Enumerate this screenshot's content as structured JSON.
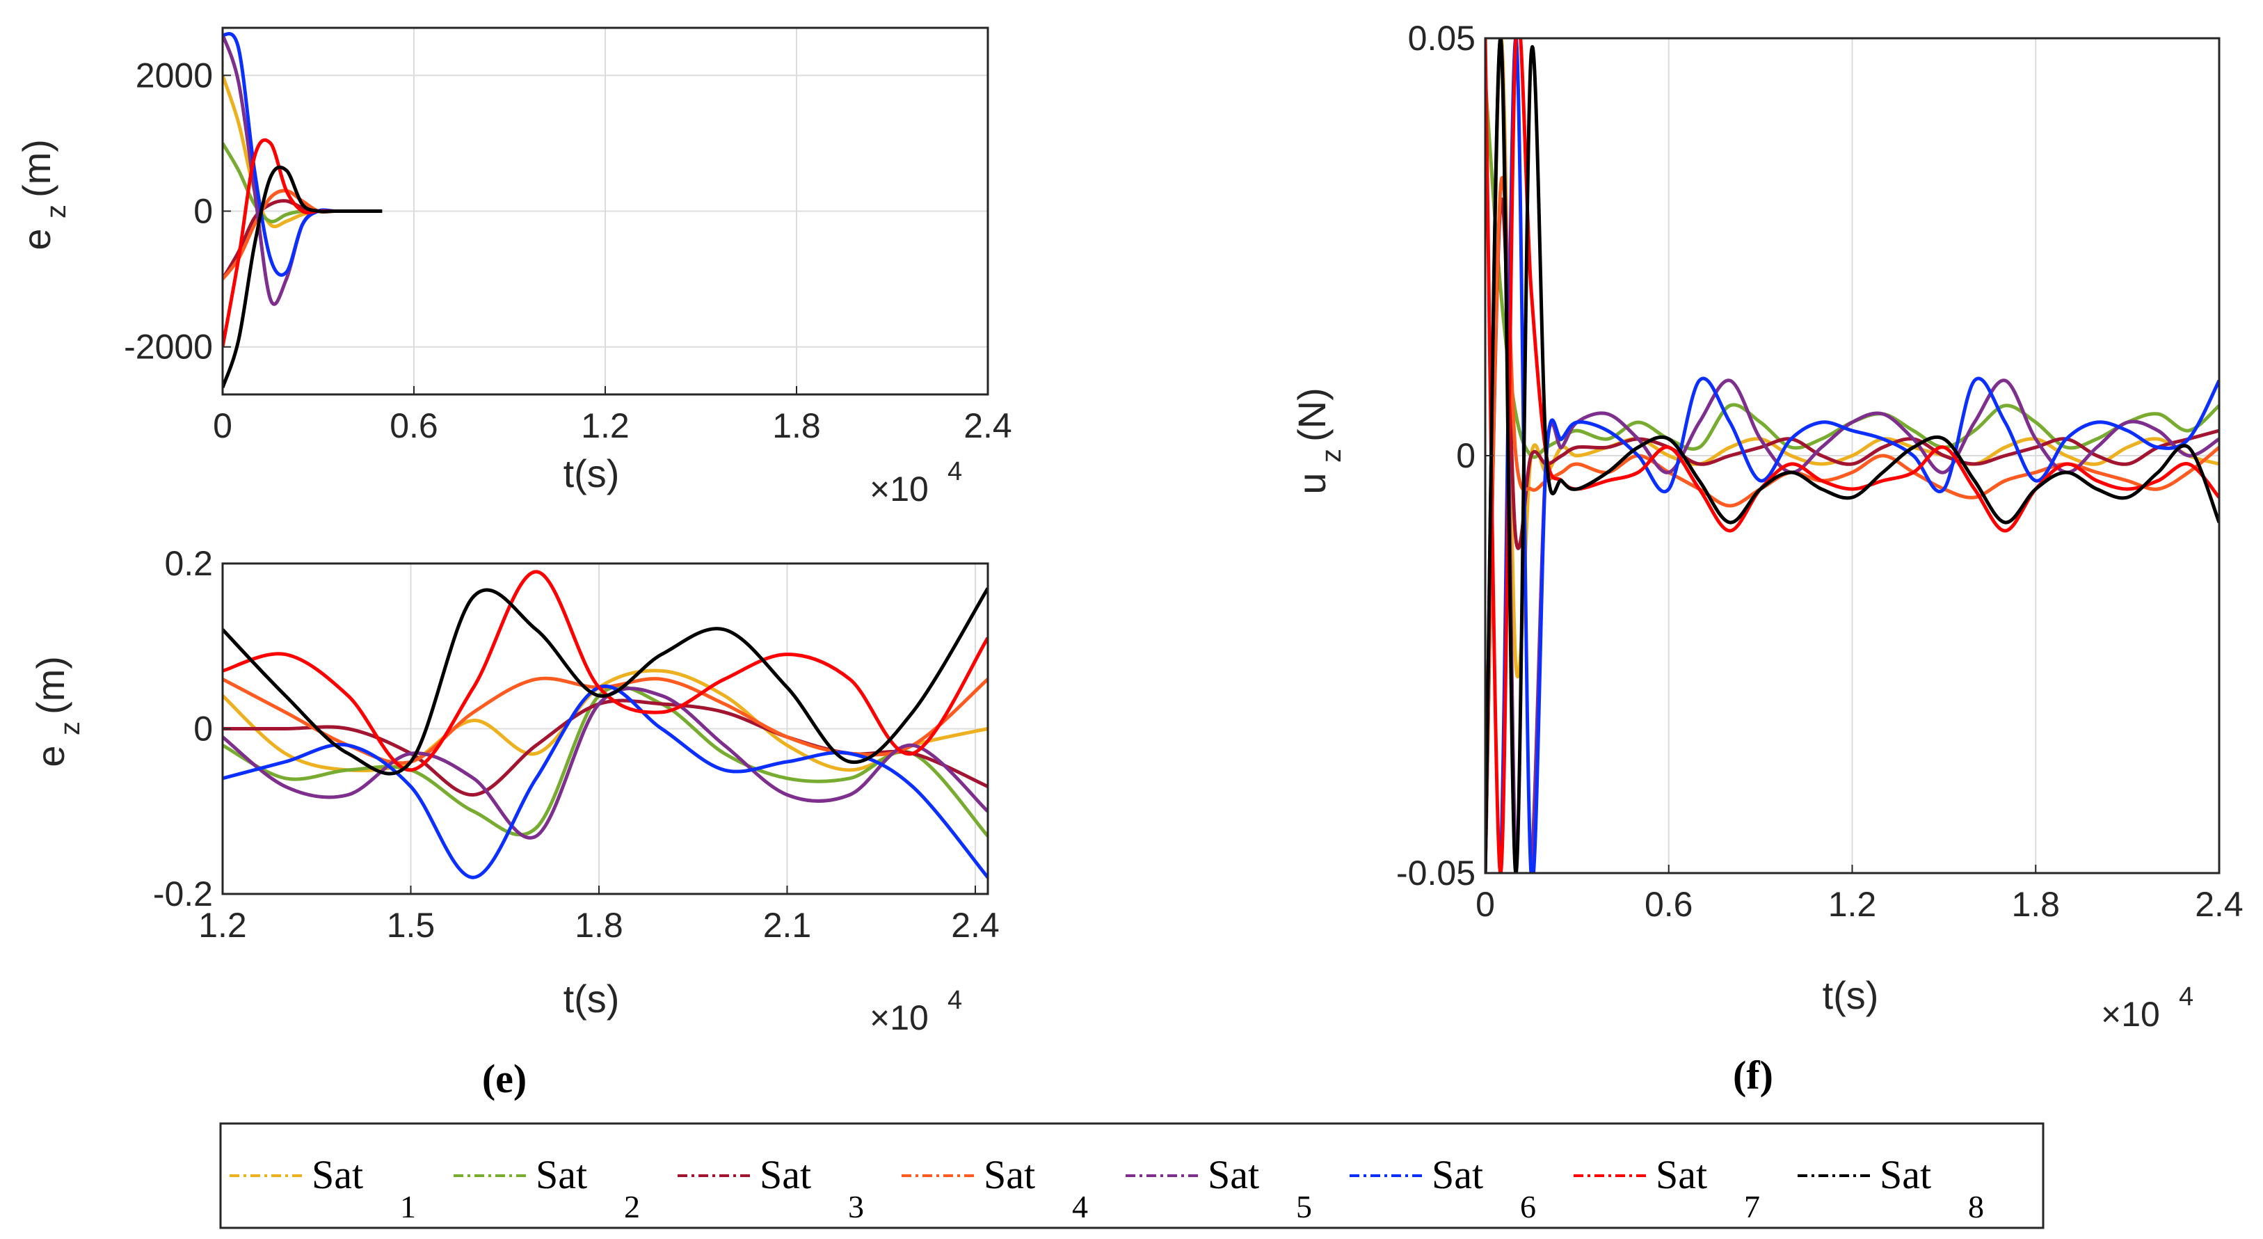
{
  "series_styles": [
    {
      "name": "Sat 1",
      "color": "#EDB120"
    },
    {
      "name": "Sat 2",
      "color": "#77AC30"
    },
    {
      "name": "Sat 3",
      "color": "#A2142F"
    },
    {
      "name": "Sat 4",
      "color": "#FF5A1F"
    },
    {
      "name": "Sat 5",
      "color": "#7E2F8E"
    },
    {
      "name": "Sat 6",
      "color": "#0B2FFF"
    },
    {
      "name": "Sat 7",
      "color": "#FF0000"
    },
    {
      "name": "Sat 8",
      "color": "#000000"
    }
  ],
  "legend": {
    "items": [
      {
        "base": "Sat",
        "sub": "1"
      },
      {
        "base": "Sat",
        "sub": "2"
      },
      {
        "base": "Sat",
        "sub": "3"
      },
      {
        "base": "Sat",
        "sub": "4"
      },
      {
        "base": "Sat",
        "sub": "5"
      },
      {
        "base": "Sat",
        "sub": "6"
      },
      {
        "base": "Sat",
        "sub": "7"
      },
      {
        "base": "Sat",
        "sub": "8"
      }
    ]
  },
  "panels": {
    "e": "(e)",
    "f": "(f)"
  },
  "chart_data": [
    {
      "id": "top",
      "type": "line",
      "title": "",
      "ylabel_main": "e",
      "ylabel_sub": "z",
      "ylabel_unit": "(m)",
      "xlabel": "t(s)",
      "x_exponent_base": "×10",
      "x_exponent_power": "4",
      "xlim": [
        0,
        2.4
      ],
      "ylim": [
        -2700,
        2700
      ],
      "xticks": [
        0,
        0.6,
        1.2,
        1.8,
        2.4
      ],
      "xtick_labels": [
        "0",
        "0.6",
        "1.2",
        "1.8",
        "2.4"
      ],
      "yticks": [
        -2000,
        0,
        2000
      ],
      "ytick_labels": [
        "-2000",
        "0",
        "2000"
      ],
      "grid": true,
      "sample_x": [
        0,
        0.05,
        0.1,
        0.15,
        0.2,
        0.25,
        0.3,
        0.35,
        0.4,
        0.45,
        0.5
      ],
      "series": [
        {
          "name": "Sat 1",
          "values": [
            2000,
            1300,
            300,
            -200,
            -150,
            -50,
            0,
            0,
            0,
            0,
            0
          ]
        },
        {
          "name": "Sat 2",
          "values": [
            1000,
            600,
            100,
            -150,
            -50,
            0,
            0,
            0,
            0,
            0,
            0
          ]
        },
        {
          "name": "Sat 3",
          "values": [
            -1000,
            -600,
            -100,
            100,
            150,
            50,
            0,
            0,
            0,
            0,
            0
          ]
        },
        {
          "name": "Sat 4",
          "values": [
            -1000,
            -700,
            -200,
            200,
            300,
            150,
            0,
            0,
            0,
            0,
            0
          ]
        },
        {
          "name": "Sat 5",
          "values": [
            2600,
            1900,
            300,
            -1300,
            -1000,
            -200,
            0,
            0,
            0,
            0,
            0
          ]
        },
        {
          "name": "Sat 6",
          "values": [
            2600,
            2400,
            600,
            -700,
            -900,
            -200,
            0,
            0,
            0,
            0,
            0
          ]
        },
        {
          "name": "Sat 7",
          "values": [
            -2000,
            -700,
            800,
            1000,
            300,
            0,
            0,
            0,
            0,
            0,
            0
          ]
        },
        {
          "name": "Sat 8",
          "values": [
            -2600,
            -1900,
            -500,
            500,
            600,
            100,
            0,
            0,
            0,
            0,
            0
          ]
        }
      ]
    },
    {
      "id": "bottom",
      "type": "line",
      "title": "",
      "ylabel_main": "e",
      "ylabel_sub": "z",
      "ylabel_unit": "(m)",
      "xlabel": "t(s)",
      "x_exponent_base": "×10",
      "x_exponent_power": "4",
      "xlim": [
        1.2,
        2.42
      ],
      "ylim": [
        -0.2,
        0.2
      ],
      "xticks": [
        1.2,
        1.5,
        1.8,
        2.1,
        2.4
      ],
      "xtick_labels": [
        "1.2",
        "1.5",
        "1.8",
        "2.1",
        "2.4"
      ],
      "yticks": [
        -0.2,
        0,
        0.2
      ],
      "ytick_labels": [
        "-0.2",
        "0",
        "0.2"
      ],
      "grid": true,
      "sample_x": [
        1.2,
        1.3,
        1.4,
        1.5,
        1.6,
        1.7,
        1.8,
        1.9,
        2.0,
        2.1,
        2.2,
        2.3,
        2.42
      ],
      "series": [
        {
          "name": "Sat 1",
          "values": [
            0.04,
            -0.03,
            -0.05,
            -0.04,
            0.01,
            -0.03,
            0.05,
            0.07,
            0.04,
            -0.02,
            -0.05,
            -0.02,
            0.0
          ]
        },
        {
          "name": "Sat 2",
          "values": [
            -0.02,
            -0.06,
            -0.05,
            -0.05,
            -0.1,
            -0.12,
            0.04,
            0.03,
            -0.03,
            -0.06,
            -0.06,
            -0.03,
            -0.13
          ]
        },
        {
          "name": "Sat 3",
          "values": [
            0.0,
            0.0,
            0.0,
            -0.03,
            -0.08,
            -0.02,
            0.03,
            0.03,
            0.02,
            -0.01,
            -0.03,
            -0.03,
            -0.07
          ]
        },
        {
          "name": "Sat 4",
          "values": [
            0.06,
            0.02,
            -0.02,
            -0.04,
            0.02,
            0.06,
            0.05,
            0.06,
            0.03,
            -0.01,
            -0.03,
            -0.02,
            0.06
          ]
        },
        {
          "name": "Sat 5",
          "values": [
            -0.01,
            -0.07,
            -0.08,
            -0.03,
            -0.06,
            -0.13,
            0.03,
            0.04,
            -0.02,
            -0.08,
            -0.08,
            -0.02,
            -0.1
          ]
        },
        {
          "name": "Sat 6",
          "values": [
            -0.06,
            -0.04,
            -0.02,
            -0.07,
            -0.18,
            -0.06,
            0.05,
            0.0,
            -0.05,
            -0.04,
            -0.03,
            -0.07,
            -0.18
          ]
        },
        {
          "name": "Sat 7",
          "values": [
            0.07,
            0.09,
            0.04,
            -0.05,
            0.05,
            0.19,
            0.05,
            0.02,
            0.06,
            0.09,
            0.06,
            -0.03,
            0.11
          ]
        },
        {
          "name": "Sat 8",
          "values": [
            0.12,
            0.04,
            -0.03,
            -0.04,
            0.16,
            0.12,
            0.04,
            0.09,
            0.12,
            0.05,
            -0.04,
            0.02,
            0.17
          ]
        }
      ]
    },
    {
      "id": "right",
      "type": "line",
      "title": "",
      "ylabel_main": "u",
      "ylabel_sub": "z",
      "ylabel_unit": "(N)",
      "xlabel": "t(s)",
      "x_exponent_base": "×10",
      "x_exponent_power": "4",
      "xlim": [
        0,
        2.4
      ],
      "ylim": [
        -0.05,
        0.05
      ],
      "xticks": [
        0,
        0.6,
        1.2,
        1.8,
        2.4
      ],
      "xtick_labels": [
        "0",
        "0.6",
        "1.2",
        "1.8",
        "2.4"
      ],
      "yticks": [
        -0.05,
        0,
        0.05
      ],
      "ytick_labels": [
        "-0.05",
        "0",
        "0.05"
      ],
      "grid": true,
      "sample_x": [
        0,
        0.05,
        0.1,
        0.15,
        0.2,
        0.25,
        0.3,
        0.4,
        0.5,
        0.6,
        0.7,
        0.8,
        0.9,
        1.0,
        1.1,
        1.2,
        1.3,
        1.4,
        1.5,
        1.6,
        1.7,
        1.8,
        1.9,
        2.0,
        2.1,
        2.2,
        2.3,
        2.4
      ],
      "series": [
        {
          "name": "Sat 1",
          "values": [
            -0.05,
            0.05,
            -0.025,
            0.0,
            -0.002,
            0.001,
            0.0,
            0.001,
            0.002,
            0.0,
            -0.001,
            0.001,
            0.002,
            0.0,
            -0.001,
            0.0,
            0.002,
            0.001,
            0.0,
            -0.001,
            0.001,
            0.002,
            0.0,
            -0.001,
            0.001,
            0.002,
            0.0,
            -0.001
          ]
        },
        {
          "name": "Sat 2",
          "values": [
            0.045,
            0.02,
            0.005,
            0.0,
            0.001,
            0.002,
            0.003,
            0.002,
            0.004,
            0.002,
            0.001,
            0.006,
            0.004,
            0.001,
            0.002,
            0.004,
            0.005,
            0.003,
            0.001,
            0.003,
            0.006,
            0.004,
            0.001,
            0.002,
            0.004,
            0.005,
            0.003,
            0.006
          ]
        },
        {
          "name": "Sat 3",
          "values": [
            -0.05,
            0.03,
            -0.01,
            0.0,
            -0.001,
            0.0,
            0.001,
            0.001,
            0.002,
            0.001,
            -0.001,
            0.0,
            0.001,
            0.002,
            0.0,
            -0.001,
            0.001,
            0.002,
            0.0,
            -0.001,
            0.0,
            0.001,
            0.002,
            0.0,
            -0.001,
            0.001,
            0.002,
            0.003
          ]
        },
        {
          "name": "Sat 4",
          "values": [
            -0.05,
            0.032,
            0.0,
            -0.004,
            -0.003,
            -0.002,
            -0.001,
            -0.002,
            0.0,
            -0.002,
            -0.004,
            -0.006,
            -0.004,
            -0.002,
            -0.003,
            -0.002,
            0.0,
            -0.002,
            -0.004,
            -0.005,
            -0.003,
            -0.002,
            -0.001,
            -0.002,
            -0.003,
            -0.004,
            -0.002,
            0.001
          ]
        },
        {
          "name": "Sat 5",
          "values": [
            -0.05,
            0.05,
            -0.05,
            -0.05,
            0.0,
            0.001,
            0.004,
            0.005,
            0.002,
            -0.002,
            0.004,
            0.009,
            0.002,
            -0.002,
            0.001,
            0.004,
            0.005,
            0.002,
            -0.002,
            0.004,
            0.009,
            0.002,
            -0.002,
            0.001,
            0.004,
            0.003,
            0.0,
            0.002
          ]
        },
        {
          "name": "Sat 6",
          "values": [
            -0.05,
            -0.05,
            0.05,
            -0.05,
            0.0,
            0.002,
            0.004,
            0.003,
            0.0,
            -0.004,
            0.009,
            0.004,
            -0.003,
            0.002,
            0.004,
            0.003,
            0.002,
            0.0,
            -0.004,
            0.009,
            0.004,
            -0.003,
            0.002,
            0.004,
            0.003,
            0.001,
            0.002,
            0.009
          ]
        },
        {
          "name": "Sat 7",
          "values": [
            0.05,
            -0.05,
            0.05,
            0.02,
            0.0,
            -0.003,
            -0.004,
            -0.003,
            -0.002,
            0.001,
            -0.004,
            -0.009,
            -0.004,
            -0.001,
            -0.003,
            -0.004,
            -0.003,
            -0.002,
            0.001,
            -0.004,
            -0.009,
            -0.004,
            -0.001,
            -0.003,
            -0.004,
            -0.003,
            -0.001,
            -0.005
          ]
        },
        {
          "name": "Sat 8",
          "values": [
            -0.05,
            0.05,
            -0.05,
            0.048,
            0.0,
            -0.003,
            -0.004,
            -0.002,
            0.001,
            0.002,
            -0.003,
            -0.008,
            -0.004,
            -0.002,
            -0.004,
            -0.005,
            -0.002,
            0.001,
            0.002,
            -0.003,
            -0.008,
            -0.004,
            -0.002,
            -0.004,
            -0.005,
            -0.002,
            0.001,
            -0.008
          ]
        }
      ]
    }
  ]
}
